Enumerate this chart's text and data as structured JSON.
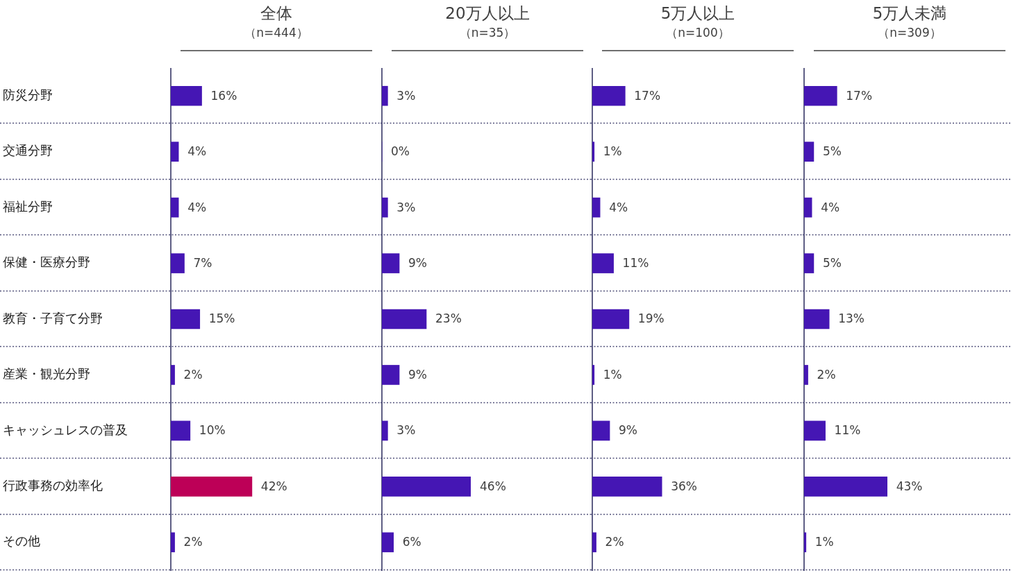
{
  "chart_data": [
    {
      "type": "bar",
      "orientation": "horizontal",
      "title": "全体",
      "subtitle": "（n=444）",
      "categories": [
        "防災分野",
        "交通分野",
        "福祉分野",
        "保健・医療分野",
        "教育・子育て分野",
        "産業・観光分野",
        "キャッシュレスの普及",
        "行政事務の効率化",
        "その他"
      ],
      "values": [
        16,
        4,
        4,
        7,
        15,
        2,
        10,
        42,
        2
      ],
      "colors": [
        "#4516b4",
        "#4516b4",
        "#4516b4",
        "#4516b4",
        "#4516b4",
        "#4516b4",
        "#4516b4",
        "#bd0057",
        "#4516b4"
      ],
      "value_labels": [
        "16%",
        "4%",
        "4%",
        "7%",
        "15%",
        "2%",
        "10%",
        "42%",
        "2%"
      ],
      "grid": "y",
      "tick_labels": "y"
    },
    {
      "type": "bar",
      "orientation": "horizontal",
      "title": "20万人以上",
      "subtitle": "（n=35）",
      "categories": [
        null,
        null,
        null,
        null,
        null,
        null,
        null,
        null,
        null
      ],
      "values": [
        3,
        0,
        3,
        9,
        23,
        9,
        3,
        46,
        6
      ],
      "color": "#4516b4",
      "value_labels": [
        "3%",
        "0%",
        "3%",
        "9%",
        "23%",
        "9%",
        "3%",
        "46%",
        "6%"
      ],
      "grid": "y",
      "tick_labels": false
    },
    {
      "type": "bar",
      "orientation": "horizontal",
      "title": "5万人以上",
      "subtitle": "（n=100）",
      "categories": [
        null,
        null,
        null,
        null,
        null,
        null,
        null,
        null,
        null
      ],
      "values": [
        17,
        1,
        4,
        11,
        19,
        1,
        9,
        36,
        2
      ],
      "color": "#4516b4",
      "value_labels": [
        "17%",
        "1%",
        "4%",
        "11%",
        "19%",
        "1%",
        "9%",
        "36%",
        "2%"
      ],
      "grid": "y",
      "tick_labels": false
    },
    {
      "type": "bar",
      "orientation": "horizontal",
      "title": "5万人未満",
      "subtitle": "（n=309）",
      "categories": [
        null,
        null,
        null,
        null,
        null,
        null,
        null,
        null,
        null
      ],
      "values": [
        17,
        5,
        4,
        5,
        13,
        2,
        11,
        43,
        1
      ],
      "color": "#4516b4",
      "value_labels": [
        "17%",
        "5%",
        "4%",
        "5%",
        "13%",
        "2%",
        "11%",
        "43%",
        "1%"
      ],
      "grid": "y",
      "tick_labels": false
    }
  ]
}
